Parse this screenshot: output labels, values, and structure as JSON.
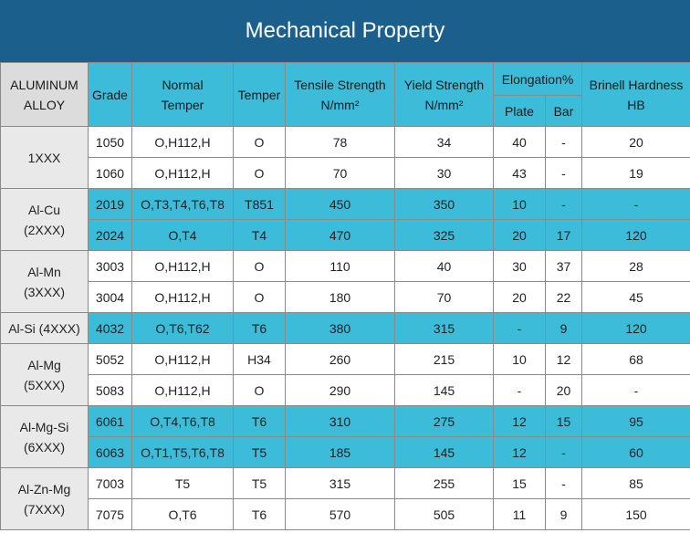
{
  "title": "Mechanical Property",
  "headers": {
    "alloy_line1": "ALUMINUM",
    "alloy_line2": "ALLOY",
    "grade": "Grade",
    "normal_temper_line1": "Normal",
    "normal_temper_line2": "Temper",
    "temper": "Temper",
    "tensile_line1": "Tensile Strength",
    "tensile_line2": "N/mm²",
    "yield_line1": "Yield Strength",
    "yield_line2": "N/mm²",
    "elongation": "Elongation%",
    "plate": "Plate",
    "bar": "Bar",
    "brinell_line1": "Brinell Hardness",
    "brinell_line2": "HB"
  },
  "groups": [
    {
      "alloy": [
        "1XXX"
      ],
      "rows": [
        {
          "grade": "1050",
          "normal": "O,H112,H",
          "temper": "O",
          "tensile": "78",
          "yield": "34",
          "plate": "40",
          "bar": "-",
          "hb": "20",
          "hl": false
        },
        {
          "grade": "1060",
          "normal": "O,H112,H",
          "temper": "O",
          "tensile": "70",
          "yield": "30",
          "plate": "43",
          "bar": "-",
          "hb": "19",
          "hl": false
        }
      ]
    },
    {
      "alloy": [
        "Al-Cu",
        "(2XXX)"
      ],
      "rows": [
        {
          "grade": "2019",
          "normal": "O,T3,T4,T6,T8",
          "temper": "T851",
          "tensile": "450",
          "yield": "350",
          "plate": "10",
          "bar": "-",
          "hb": "-",
          "hl": true
        },
        {
          "grade": "2024",
          "normal": "O,T4",
          "temper": "T4",
          "tensile": "470",
          "yield": "325",
          "plate": "20",
          "bar": "17",
          "hb": "120",
          "hl": true
        }
      ]
    },
    {
      "alloy": [
        "Al-Mn",
        "(3XXX)"
      ],
      "rows": [
        {
          "grade": "3003",
          "normal": "O,H112,H",
          "temper": "O",
          "tensile": "110",
          "yield": "40",
          "plate": "30",
          "bar": "37",
          "hb": "28",
          "hl": false
        },
        {
          "grade": "3004",
          "normal": "O,H112,H",
          "temper": "O",
          "tensile": "180",
          "yield": "70",
          "plate": "20",
          "bar": "22",
          "hb": "45",
          "hl": false
        }
      ]
    },
    {
      "alloy": [
        "Al-Si (4XXX)"
      ],
      "rows": [
        {
          "grade": "4032",
          "normal": "O,T6,T62",
          "temper": "T6",
          "tensile": "380",
          "yield": "315",
          "plate": "-",
          "bar": "9",
          "hb": "120",
          "hl": true
        }
      ]
    },
    {
      "alloy": [
        "Al-Mg",
        "(5XXX)"
      ],
      "rows": [
        {
          "grade": "5052",
          "normal": "O,H112,H",
          "temper": "H34",
          "tensile": "260",
          "yield": "215",
          "plate": "10",
          "bar": "12",
          "hb": "68",
          "hl": false
        },
        {
          "grade": "5083",
          "normal": "O,H112,H",
          "temper": "O",
          "tensile": "290",
          "yield": "145",
          "plate": "-",
          "bar": "20",
          "hb": "-",
          "hl": false
        }
      ]
    },
    {
      "alloy": [
        "Al-Mg-Si",
        "(6XXX)"
      ],
      "rows": [
        {
          "grade": "6061",
          "normal": "O,T4,T6,T8",
          "temper": "T6",
          "tensile": "310",
          "yield": "275",
          "plate": "12",
          "bar": "15",
          "hb": "95",
          "hl": true
        },
        {
          "grade": "6063",
          "normal": "O,T1,T5,T6,T8",
          "temper": "T5",
          "tensile": "185",
          "yield": "145",
          "plate": "12",
          "bar": "-",
          "hb": "60",
          "hl": true
        }
      ]
    },
    {
      "alloy": [
        "Al-Zn-Mg",
        "(7XXX)"
      ],
      "rows": [
        {
          "grade": "7003",
          "normal": "T5",
          "temper": "T5",
          "tensile": "315",
          "yield": "255",
          "plate": "15",
          "bar": "-",
          "hb": "85",
          "hl": false
        },
        {
          "grade": "7075",
          "normal": "O,T6",
          "temper": "T6",
          "tensile": "570",
          "yield": "505",
          "plate": "11",
          "bar": "9",
          "hb": "150",
          "hl": false
        }
      ]
    }
  ]
}
